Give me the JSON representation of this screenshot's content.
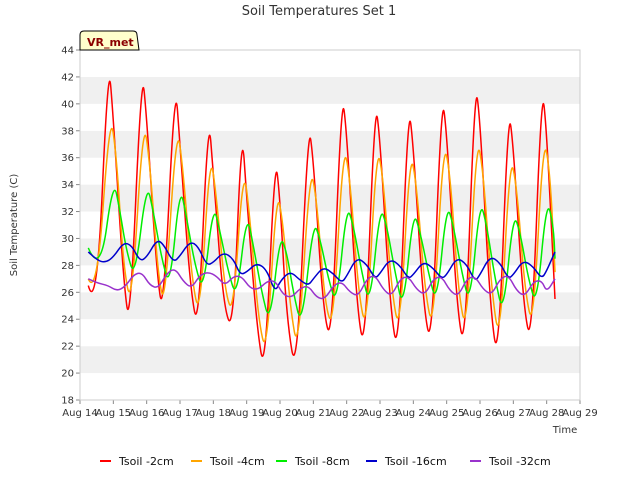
{
  "chart_data": {
    "type": "line",
    "title": "Soil Temperatures Set 1",
    "xlabel": "Time",
    "ylabel": "Soil Temperature (C)",
    "badge": "VR_met",
    "xlim": [
      14,
      29
    ],
    "ylim": [
      18,
      44
    ],
    "x_ticks": [
      14,
      15,
      16,
      17,
      18,
      19,
      20,
      21,
      22,
      23,
      24,
      25,
      26,
      27,
      28,
      29
    ],
    "x_tick_labels": [
      "Aug 14",
      "Aug 15",
      "Aug 16",
      "Aug 17",
      "Aug 18",
      "Aug 19",
      "Aug 20",
      "Aug 21",
      "Aug 22",
      "Aug 23",
      "Aug 24",
      "Aug 25",
      "Aug 26",
      "Aug 27",
      "Aug 28",
      "Aug 29"
    ],
    "y_ticks": [
      18,
      20,
      22,
      24,
      26,
      28,
      30,
      32,
      34,
      36,
      38,
      40,
      42,
      44
    ],
    "grid": "horizontal bands",
    "legend_position": "bottom",
    "x_note": "x values are fractional days of August",
    "series": [
      {
        "name": "Tsoil -2cm",
        "color": "#ff0000",
        "points": [
          [
            14.25,
            26.5
          ],
          [
            14.5,
            24.2
          ],
          [
            14.85,
            43.5
          ],
          [
            15.0,
            39.0
          ],
          [
            15.3,
            27.0
          ],
          [
            15.5,
            23.1
          ],
          [
            15.85,
            42.8
          ],
          [
            16.0,
            39.0
          ],
          [
            16.3,
            27.5
          ],
          [
            16.5,
            24.1
          ],
          [
            16.85,
            42.0
          ],
          [
            17.0,
            37.0
          ],
          [
            17.3,
            26.5
          ],
          [
            17.55,
            22.9
          ],
          [
            17.85,
            39.4
          ],
          [
            18.0,
            35.0
          ],
          [
            18.3,
            25.0
          ],
          [
            18.6,
            23.0
          ],
          [
            18.85,
            38.6
          ],
          [
            19.0,
            33.0
          ],
          [
            19.3,
            23.5
          ],
          [
            19.55,
            19.7
          ],
          [
            19.85,
            36.3
          ],
          [
            20.0,
            33.0
          ],
          [
            20.2,
            24.0
          ],
          [
            20.5,
            19.5
          ],
          [
            20.85,
            38.6
          ],
          [
            21.0,
            36.0
          ],
          [
            21.3,
            24.5
          ],
          [
            21.55,
            22.2
          ],
          [
            21.85,
            40.9
          ],
          [
            22.0,
            38.0
          ],
          [
            22.3,
            25.0
          ],
          [
            22.55,
            21.3
          ],
          [
            22.85,
            40.3
          ],
          [
            23.0,
            37.5
          ],
          [
            23.3,
            25.0
          ],
          [
            23.55,
            21.0
          ],
          [
            23.85,
            40.0
          ],
          [
            24.0,
            37.0
          ],
          [
            24.3,
            25.0
          ],
          [
            24.55,
            21.7
          ],
          [
            24.85,
            40.7
          ],
          [
            25.0,
            38.0
          ],
          [
            25.3,
            25.0
          ],
          [
            25.55,
            21.4
          ],
          [
            25.85,
            41.6
          ],
          [
            26.0,
            39.0
          ],
          [
            26.3,
            25.0
          ],
          [
            26.55,
            20.4
          ],
          [
            26.85,
            39.7
          ],
          [
            27.0,
            37.0
          ],
          [
            27.3,
            25.0
          ],
          [
            27.55,
            21.9
          ],
          [
            27.85,
            41.5
          ],
          [
            28.0,
            38.0
          ],
          [
            28.25,
            25.5
          ]
        ]
      },
      {
        "name": "Tsoil -4cm",
        "color": "#ffa500",
        "points": [
          [
            14.25,
            27.0
          ],
          [
            14.5,
            25.5
          ],
          [
            14.9,
            39.6
          ],
          [
            15.1,
            36.0
          ],
          [
            15.3,
            28.0
          ],
          [
            15.55,
            24.7
          ],
          [
            15.9,
            39.1
          ],
          [
            16.1,
            35.5
          ],
          [
            16.35,
            27.0
          ],
          [
            16.55,
            25.0
          ],
          [
            16.9,
            38.7
          ],
          [
            17.1,
            35.0
          ],
          [
            17.35,
            27.0
          ],
          [
            17.6,
            24.0
          ],
          [
            17.9,
            36.6
          ],
          [
            18.1,
            33.0
          ],
          [
            18.35,
            26.0
          ],
          [
            18.6,
            24.3
          ],
          [
            18.9,
            35.6
          ],
          [
            19.1,
            31.5
          ],
          [
            19.35,
            24.0
          ],
          [
            19.6,
            21.2
          ],
          [
            19.9,
            33.8
          ],
          [
            20.1,
            31.0
          ],
          [
            20.3,
            25.0
          ],
          [
            20.55,
            21.3
          ],
          [
            20.9,
            35.4
          ],
          [
            21.1,
            33.0
          ],
          [
            21.35,
            25.0
          ],
          [
            21.6,
            23.3
          ],
          [
            21.9,
            37.1
          ],
          [
            22.1,
            34.5
          ],
          [
            22.35,
            26.0
          ],
          [
            22.6,
            22.9
          ],
          [
            22.9,
            37.0
          ],
          [
            23.1,
            34.5
          ],
          [
            23.35,
            26.0
          ],
          [
            23.6,
            22.8
          ],
          [
            23.9,
            36.6
          ],
          [
            24.1,
            34.0
          ],
          [
            24.35,
            26.0
          ],
          [
            24.6,
            23.0
          ],
          [
            24.9,
            37.2
          ],
          [
            25.1,
            35.0
          ],
          [
            25.35,
            26.0
          ],
          [
            25.6,
            22.8
          ],
          [
            25.9,
            37.7
          ],
          [
            26.1,
            35.0
          ],
          [
            26.35,
            26.0
          ],
          [
            26.6,
            22.0
          ],
          [
            26.9,
            36.2
          ],
          [
            27.1,
            34.0
          ],
          [
            27.35,
            26.0
          ],
          [
            27.6,
            23.2
          ],
          [
            27.9,
            37.7
          ],
          [
            28.1,
            35.0
          ],
          [
            28.25,
            27.5
          ]
        ]
      },
      {
        "name": "Tsoil -8cm",
        "color": "#00ee00",
        "points": [
          [
            14.25,
            29.3
          ],
          [
            14.6,
            27.2
          ],
          [
            15.0,
            34.5
          ],
          [
            15.2,
            32.0
          ],
          [
            15.4,
            29.0
          ],
          [
            15.65,
            27.0
          ],
          [
            16.0,
            34.2
          ],
          [
            16.2,
            32.0
          ],
          [
            16.45,
            28.5
          ],
          [
            16.7,
            26.3
          ],
          [
            17.0,
            34.0
          ],
          [
            17.2,
            31.5
          ],
          [
            17.45,
            28.0
          ],
          [
            17.7,
            26.0
          ],
          [
            18.0,
            32.6
          ],
          [
            18.2,
            30.5
          ],
          [
            18.45,
            27.5
          ],
          [
            18.7,
            25.5
          ],
          [
            19.0,
            31.9
          ],
          [
            19.2,
            29.5
          ],
          [
            19.45,
            26.0
          ],
          [
            19.7,
            23.6
          ],
          [
            20.0,
            30.3
          ],
          [
            20.2,
            29.0
          ],
          [
            20.4,
            26.0
          ],
          [
            20.65,
            23.3
          ],
          [
            21.0,
            31.3
          ],
          [
            21.2,
            30.0
          ],
          [
            21.45,
            27.0
          ],
          [
            21.7,
            25.0
          ],
          [
            22.0,
            32.5
          ],
          [
            22.2,
            31.0
          ],
          [
            22.45,
            27.5
          ],
          [
            22.7,
            24.9
          ],
          [
            23.0,
            32.4
          ],
          [
            23.2,
            31.0
          ],
          [
            23.45,
            27.5
          ],
          [
            23.7,
            24.6
          ],
          [
            24.0,
            32.1
          ],
          [
            24.2,
            30.5
          ],
          [
            24.45,
            27.5
          ],
          [
            24.7,
            25.0
          ],
          [
            25.0,
            32.6
          ],
          [
            25.2,
            31.0
          ],
          [
            25.45,
            27.5
          ],
          [
            25.7,
            25.0
          ],
          [
            26.0,
            32.9
          ],
          [
            26.2,
            31.0
          ],
          [
            26.45,
            27.0
          ],
          [
            26.7,
            24.2
          ],
          [
            27.0,
            31.9
          ],
          [
            27.2,
            30.5
          ],
          [
            27.45,
            27.0
          ],
          [
            27.7,
            24.9
          ],
          [
            28.0,
            33.0
          ],
          [
            28.2,
            31.0
          ],
          [
            28.25,
            28.5
          ]
        ]
      },
      {
        "name": "Tsoil -16cm",
        "color": "#0000cc",
        "points": [
          [
            14.25,
            29.0
          ],
          [
            14.5,
            28.4
          ],
          [
            14.75,
            28.2
          ],
          [
            15.0,
            28.6
          ],
          [
            15.3,
            29.7
          ],
          [
            15.55,
            29.5
          ],
          [
            15.8,
            28.3
          ],
          [
            16.0,
            28.6
          ],
          [
            16.3,
            29.9
          ],
          [
            16.5,
            29.6
          ],
          [
            16.8,
            28.2
          ],
          [
            17.0,
            28.7
          ],
          [
            17.3,
            29.8
          ],
          [
            17.55,
            29.4
          ],
          [
            17.8,
            28.0
          ],
          [
            18.0,
            28.2
          ],
          [
            18.3,
            29.0
          ],
          [
            18.6,
            28.5
          ],
          [
            18.8,
            27.3
          ],
          [
            19.0,
            27.5
          ],
          [
            19.3,
            28.2
          ],
          [
            19.6,
            27.7
          ],
          [
            19.85,
            26.0
          ],
          [
            20.0,
            26.8
          ],
          [
            20.3,
            27.6
          ],
          [
            20.6,
            26.9
          ],
          [
            20.85,
            26.5
          ],
          [
            21.0,
            27.0
          ],
          [
            21.3,
            27.9
          ],
          [
            21.6,
            27.4
          ],
          [
            21.85,
            26.7
          ],
          [
            22.0,
            27.2
          ],
          [
            22.3,
            28.6
          ],
          [
            22.6,
            28.1
          ],
          [
            22.85,
            27.0
          ],
          [
            23.0,
            27.4
          ],
          [
            23.3,
            28.5
          ],
          [
            23.6,
            28.0
          ],
          [
            23.85,
            27.0
          ],
          [
            24.0,
            27.3
          ],
          [
            24.3,
            28.3
          ],
          [
            24.6,
            27.8
          ],
          [
            24.85,
            27.0
          ],
          [
            25.0,
            27.3
          ],
          [
            25.3,
            28.6
          ],
          [
            25.6,
            28.1
          ],
          [
            25.85,
            26.8
          ],
          [
            26.0,
            27.3
          ],
          [
            26.3,
            28.7
          ],
          [
            26.6,
            28.2
          ],
          [
            26.85,
            27.0
          ],
          [
            27.0,
            27.3
          ],
          [
            27.3,
            28.4
          ],
          [
            27.6,
            27.9
          ],
          [
            27.85,
            27.0
          ],
          [
            28.0,
            27.6
          ],
          [
            28.25,
            29.0
          ]
        ]
      },
      {
        "name": "Tsoil -32cm",
        "color": "#9933cc",
        "points": [
          [
            14.25,
            27.0
          ],
          [
            14.5,
            26.7
          ],
          [
            14.85,
            26.5
          ],
          [
            15.1,
            26.1
          ],
          [
            15.35,
            26.4
          ],
          [
            15.6,
            27.3
          ],
          [
            15.85,
            27.5
          ],
          [
            16.1,
            26.5
          ],
          [
            16.35,
            26.3
          ],
          [
            16.6,
            27.4
          ],
          [
            16.85,
            27.8
          ],
          [
            17.1,
            26.8
          ],
          [
            17.35,
            26.3
          ],
          [
            17.6,
            27.3
          ],
          [
            17.85,
            27.5
          ],
          [
            18.1,
            27.2
          ],
          [
            18.35,
            26.5
          ],
          [
            18.6,
            27.2
          ],
          [
            18.85,
            27.2
          ],
          [
            19.1,
            26.3
          ],
          [
            19.35,
            26.2
          ],
          [
            19.6,
            26.8
          ],
          [
            19.85,
            26.9
          ],
          [
            20.1,
            25.8
          ],
          [
            20.35,
            25.6
          ],
          [
            20.6,
            26.3
          ],
          [
            20.85,
            26.5
          ],
          [
            21.1,
            25.6
          ],
          [
            21.35,
            25.5
          ],
          [
            21.6,
            26.5
          ],
          [
            21.85,
            26.8
          ],
          [
            22.1,
            26.0
          ],
          [
            22.35,
            25.7
          ],
          [
            22.6,
            27.0
          ],
          [
            22.85,
            27.3
          ],
          [
            23.1,
            26.2
          ],
          [
            23.35,
            25.7
          ],
          [
            23.6,
            27.0
          ],
          [
            23.85,
            27.2
          ],
          [
            24.1,
            26.2
          ],
          [
            24.35,
            25.8
          ],
          [
            24.6,
            27.0
          ],
          [
            24.85,
            27.2
          ],
          [
            25.1,
            26.1
          ],
          [
            25.35,
            25.7
          ],
          [
            25.6,
            27.0
          ],
          [
            25.85,
            27.2
          ],
          [
            26.1,
            26.2
          ],
          [
            26.35,
            25.8
          ],
          [
            26.6,
            27.0
          ],
          [
            26.85,
            27.3
          ],
          [
            27.1,
            26.1
          ],
          [
            27.35,
            25.7
          ],
          [
            27.6,
            26.8
          ],
          [
            27.85,
            26.9
          ],
          [
            28.0,
            26.0
          ],
          [
            28.25,
            27.0
          ]
        ]
      }
    ]
  }
}
